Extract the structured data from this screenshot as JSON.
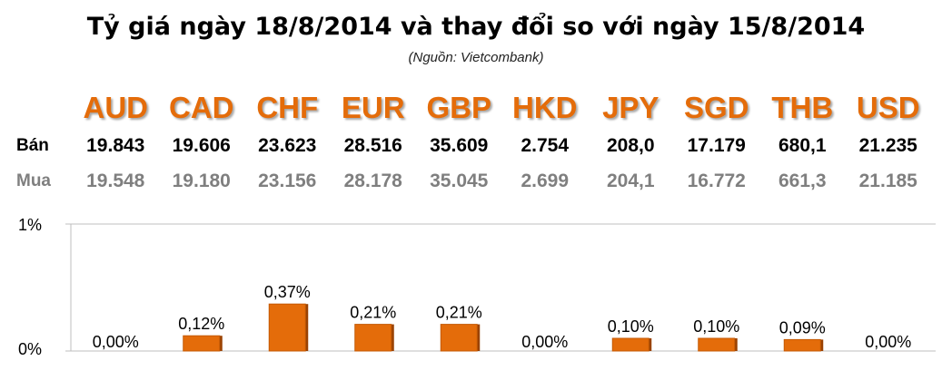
{
  "title": "Tỷ giá ngày 18/8/2014 và thay đổi so với ngày 15/8/2014",
  "source": "(Nguồn: Vietcombank)",
  "row_labels": {
    "sell": "Bán",
    "buy": "Mua"
  },
  "colors": {
    "accent": "#e46c0a",
    "bar": "#e46c0a",
    "bar_dark": "#9a4203",
    "buy_text": "#7f7f7f",
    "axis": "#bfbfbf"
  },
  "chart_data": {
    "type": "bar",
    "categories": [
      "AUD",
      "CAD",
      "CHF",
      "EUR",
      "GBP",
      "HKD",
      "JPY",
      "SGD",
      "THB",
      "USD"
    ],
    "sell": [
      "19.843",
      "19.606",
      "23.623",
      "28.516",
      "35.609",
      "2.754",
      "208,0",
      "17.179",
      "680,1",
      "21.235"
    ],
    "buy": [
      "19.548",
      "19.180",
      "23.156",
      "28.178",
      "35.045",
      "2.699",
      "204,1",
      "16.772",
      "661,3",
      "21.185"
    ],
    "values": [
      0.0,
      0.12,
      0.37,
      0.21,
      0.21,
      0.0,
      0.1,
      0.1,
      0.09,
      0.0
    ],
    "data_labels": [
      "0,00%",
      "0,12%",
      "0,37%",
      "0,21%",
      "0,21%",
      "0,00%",
      "0,10%",
      "0,10%",
      "0,09%",
      "0,00%"
    ],
    "ylim": [
      0,
      1
    ],
    "yticks": [
      "0%",
      "1%"
    ],
    "xlabel": "",
    "ylabel": "",
    "grid": false
  }
}
